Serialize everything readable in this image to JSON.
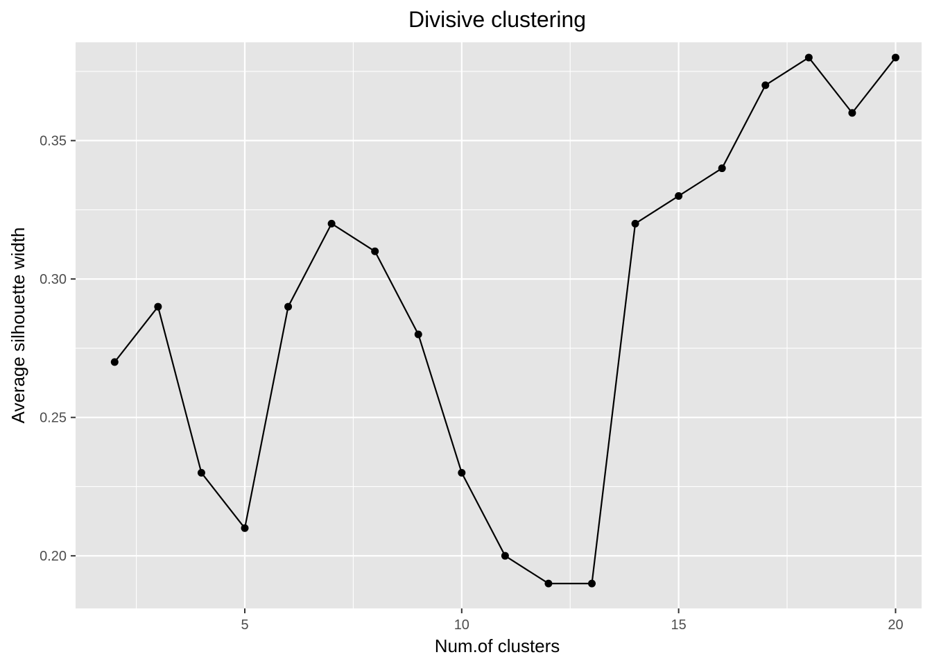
{
  "chart_data": {
    "type": "line",
    "title": "Divisive clustering",
    "xlabel": "Num.of clusters",
    "ylabel": "Average silhouette width",
    "x": [
      2,
      3,
      4,
      5,
      6,
      7,
      8,
      9,
      10,
      11,
      12,
      13,
      14,
      15,
      16,
      17,
      18,
      19,
      20
    ],
    "series": [
      {
        "values": [
          0.27,
          0.29,
          0.23,
          0.21,
          0.29,
          0.32,
          0.31,
          0.28,
          0.23,
          0.2,
          0.19,
          0.19,
          0.32,
          0.33,
          0.34,
          0.37,
          0.38,
          0.36,
          0.38
        ]
      }
    ],
    "xticks": [
      5,
      10,
      15,
      20
    ],
    "xtick_labels": [
      "5",
      "10",
      "15",
      "20"
    ],
    "yticks": [
      0.2,
      0.25,
      0.3,
      0.35
    ],
    "ytick_labels": [
      "0.20",
      "0.25",
      "0.30",
      "0.35"
    ],
    "xlim": [
      1.1,
      20.6
    ],
    "ylim": [
      0.181,
      0.3855
    ],
    "grid": true,
    "style": {
      "panel_background": "#e5e5e5",
      "grid_color": "#ffffff",
      "line_color": "#000000",
      "point_color": "#000000"
    }
  }
}
